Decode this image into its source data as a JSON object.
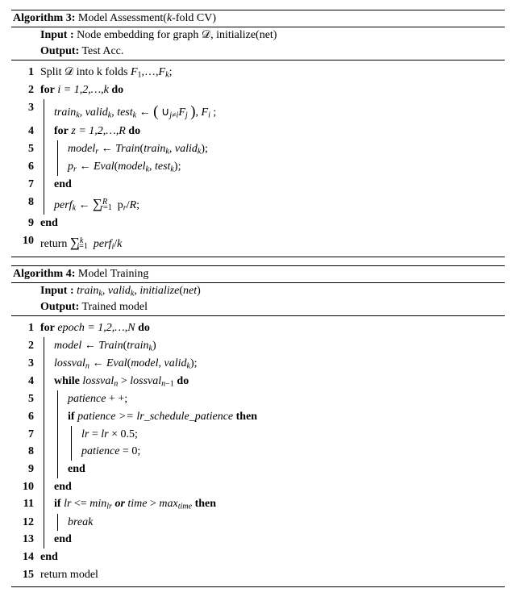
{
  "algo3": {
    "header": "Algorithm 3:",
    "title": "Model Assessment(k-fold CV)",
    "input_label": "Input   :",
    "input_text": "Node embedding for graph 𝒟, initialize(net)",
    "output_label": "Output:",
    "output_text": "Test Acc.",
    "l1": "Split 𝒟 into k folds F₁,…,F_k;",
    "l2_kw": "for",
    "l2_txt": " i = 1,2,…,k ",
    "l2_do": "do",
    "l3": "train_k, valid_k, test_k ← ( ∪_{j≠i} F_j ), F_i ;",
    "l4_kw": "for",
    "l4_txt": " z = 1,2,…,R ",
    "l4_do": "do",
    "l5": "model_r ← Train(train_k, valid_k);",
    "l6": "p_r ← Eval(model_k, test_k);",
    "l7": "end",
    "l8": "perf_k ← Σ_{r=1}^{R} p_r / R;",
    "l9": "end",
    "l10": "return Σ_{i=1}^{k} perf_i / k"
  },
  "algo4": {
    "header": "Algorithm 4:",
    "title": "Model Training",
    "input_label": "Input   :",
    "input_text": "train_k, valid_k, initialize(net)",
    "output_label": "Output:",
    "output_text": "Trained model",
    "l1_kw": "for",
    "l1_txt": " epoch = 1,2,…,N ",
    "l1_do": "do",
    "l2": "model ← Train(train_k)",
    "l3": "lossval_n ← Eval(model, valid_k);",
    "l4_kw": "while",
    "l4_txt": " lossval_n > lossval_{n−1} ",
    "l4_do": "do",
    "l5": "patience ++;",
    "l6_kw": "if",
    "l6_txt": " patience >= lr_schedule_patience ",
    "l6_then": "then",
    "l7": "lr = lr × 0.5;",
    "l8": "patience = 0;",
    "l9": "end",
    "l10": "end",
    "l11_kw": "if",
    "l11_txt": " lr <= min_lr ",
    "l11_or": "or",
    "l11_txt2": " time > max_time ",
    "l11_then": "then",
    "l12": "break",
    "l13": "end",
    "l14": "end",
    "l15": "return model"
  }
}
